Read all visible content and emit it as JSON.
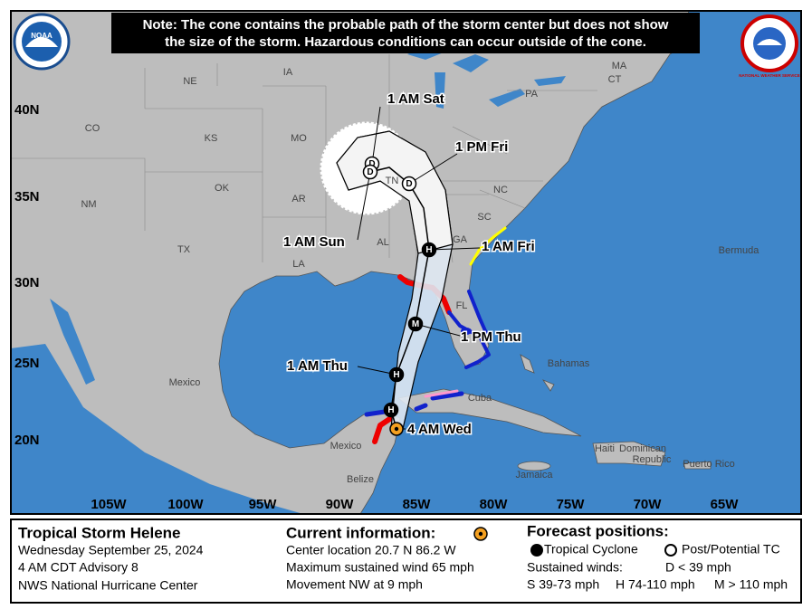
{
  "note": [
    "Note: The cone contains the probable path of the storm center but does not show",
    "the size of the storm. Hazardous conditions can occur outside of the cone."
  ],
  "logos": {
    "noaa": "NOAA",
    "nws": "NATIONAL WEATHER SERVICE"
  },
  "map": {
    "lat_labels": [
      "40N",
      "35N",
      "30N",
      "25N",
      "20N"
    ],
    "lon_labels": [
      "105W",
      "100W",
      "95W",
      "90W",
      "85W",
      "80W",
      "75W",
      "70W",
      "65W"
    ],
    "place_labels": [
      "NE",
      "IA",
      "MO",
      "KS",
      "CO",
      "OK",
      "NM",
      "TX",
      "AR",
      "LA",
      "AL",
      "TN",
      "GA",
      "SC",
      "NC",
      "PA",
      "MA",
      "CT",
      "FL",
      "Mexico",
      "Mexico",
      "Cuba",
      "Bahamas",
      "Bermuda",
      "Jamaica",
      "Belize",
      "Haiti",
      "Dominican",
      "Republic",
      "Puerto Rico"
    ],
    "forecast_labels": [
      "1 AM Sat",
      "1 PM Fri",
      "1 AM Sun",
      "1 AM Fri",
      "1 PM Thu",
      "1 AM Thu",
      "4 AM Wed"
    ],
    "point_letters": [
      "D",
      "D",
      "D",
      "H",
      "M",
      "H",
      "H"
    ]
  },
  "legend": {
    "storm": {
      "title": "Tropical Storm Helene",
      "lines": [
        "Wednesday September 25, 2024",
        "4 AM CDT Advisory 8",
        "NWS National Hurricane Center"
      ]
    },
    "current": {
      "title": "Current information:",
      "lines": [
        "Center location 20.7 N 86.2 W",
        "Maximum sustained wind 65 mph",
        "Movement NW at 9 mph"
      ]
    },
    "forecast": {
      "title": "Forecast positions:",
      "tropical": "Tropical Cyclone",
      "post": "Post/Potential TC",
      "winds": "Sustained winds:",
      "d": "D < 39 mph",
      "s": "S 39-73 mph",
      "h": "H 74-110 mph",
      "m": "M > 110 mph"
    }
  }
}
